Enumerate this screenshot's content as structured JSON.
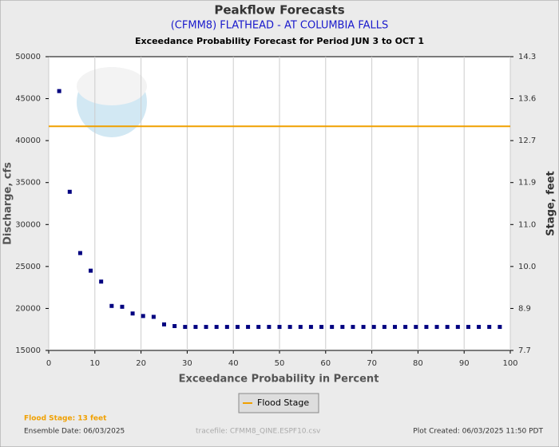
{
  "chart_data": {
    "type": "scatter",
    "title": "Peakflow Forecasts",
    "subtitle": "(CFMM8) FLATHEAD - AT COLUMBIA FALLS",
    "subtitle2": "Exceedance Probability Forecast for Period JUN 3 to OCT 1",
    "xlabel": "Exceedance Probability in Percent",
    "ylabel": "Discharge, cfs",
    "y2label": "Stage, feet",
    "xlim": [
      0,
      100
    ],
    "xticks": [
      0,
      10,
      20,
      30,
      40,
      50,
      60,
      70,
      80,
      90,
      100
    ],
    "ylim": [
      15000,
      50000
    ],
    "yticks": [
      15000,
      20000,
      25000,
      30000,
      35000,
      40000,
      45000,
      50000
    ],
    "y2lim": [
      7.7,
      14.3
    ],
    "y2ticks": [
      7.7,
      8.9,
      {
        "value": 10,
        "label": "10.0"
      },
      {
        "value": 11,
        "label": "11.0"
      },
      11.9,
      12.7,
      13.6,
      14.3
    ],
    "grid": "x",
    "series": [
      {
        "color": "#000080",
        "x": [
          2.27,
          4.55,
          6.82,
          9.09,
          11.36,
          13.64,
          15.91,
          18.18,
          20.45,
          22.73,
          25.0,
          27.27,
          29.55,
          31.82,
          34.09,
          36.36,
          38.64,
          40.91,
          43.18,
          45.45,
          47.73,
          50.0,
          52.27,
          54.55,
          56.82,
          59.09,
          61.36,
          63.64,
          65.91,
          68.18,
          70.45,
          72.73,
          75.0,
          77.27,
          79.55,
          81.82,
          84.09,
          86.36,
          88.64,
          90.91,
          93.18,
          95.45,
          97.73
        ],
        "values": [
          45900,
          33900,
          26600,
          24500,
          23200,
          20300,
          20200,
          19400,
          19100,
          19000,
          18100,
          17900,
          17800,
          17800,
          17800,
          17800,
          17800,
          17800,
          17800,
          17800,
          17800,
          17800,
          17800,
          17800,
          17800,
          17800,
          17800,
          17800,
          17800,
          17800,
          17800,
          17800,
          17800,
          17800,
          17800,
          17800,
          17800,
          17800,
          17800,
          17800,
          17800,
          17800,
          17800
        ]
      }
    ],
    "flood_stage": {
      "name": "Flood Stage",
      "value": 41700,
      "color": "#f0a000"
    },
    "legend": "bottom",
    "notes": {
      "flood_stage": "Flood Stage: 13 feet",
      "ensemble_date": "Ensemble Date: 06/03/2025",
      "tracefile": "tracefile: CFMM8_QINE.ESPF10.csv",
      "plot_created": "Plot Created: 06/03/2025 11:50 PDT"
    }
  }
}
